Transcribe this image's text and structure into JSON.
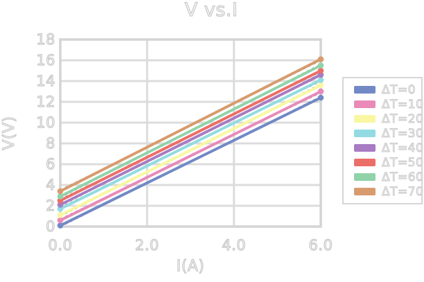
{
  "chart_data": {
    "type": "line",
    "title": "V vs.I",
    "xlabel": "I(A)",
    "ylabel": "V(V)",
    "xlim": [
      0,
      6
    ],
    "ylim": [
      0,
      18
    ],
    "x_tick_labels": [
      "0.0",
      "2.0",
      "4.0",
      "6.0"
    ],
    "x_tick_values": [
      0,
      2,
      4,
      6
    ],
    "y_tick_values": [
      0,
      2,
      4,
      6,
      8,
      10,
      12,
      14,
      16,
      18
    ],
    "grid": true,
    "legend_position": "right-outside",
    "x": [
      0,
      6
    ],
    "series": [
      {
        "name": "ΔT=0",
        "color": "#7289c6",
        "values": [
          0.1,
          12.4
        ]
      },
      {
        "name": "ΔT=10",
        "color": "#e98ab9",
        "values": [
          0.6,
          13.0
        ]
      },
      {
        "name": "ΔT=20",
        "color": "#f9f7a2",
        "values": [
          1.1,
          13.6
        ]
      },
      {
        "name": "ΔT=30",
        "color": "#92dbe2",
        "values": [
          1.7,
          14.1
        ]
      },
      {
        "name": "ΔT=40",
        "color": "#a77cc2",
        "values": [
          2.1,
          14.6
        ]
      },
      {
        "name": "ΔT=50",
        "color": "#ec6e68",
        "values": [
          2.5,
          15.0
        ]
      },
      {
        "name": "ΔT=60",
        "color": "#90d3a9",
        "values": [
          2.9,
          15.5
        ]
      },
      {
        "name": "ΔT=70",
        "color": "#d89b6d",
        "values": [
          3.4,
          16.1
        ]
      }
    ],
    "annotations": "each colored series has a thin black dashed fit line beneath it; round markers at both endpoints of every series"
  },
  "colors": {
    "background": "#ffffff",
    "grid": "#dcdcdc",
    "plot_border": "#d4d4d4",
    "text_outline": "#c7c7c7",
    "fit_line": "#1a1a1a"
  }
}
